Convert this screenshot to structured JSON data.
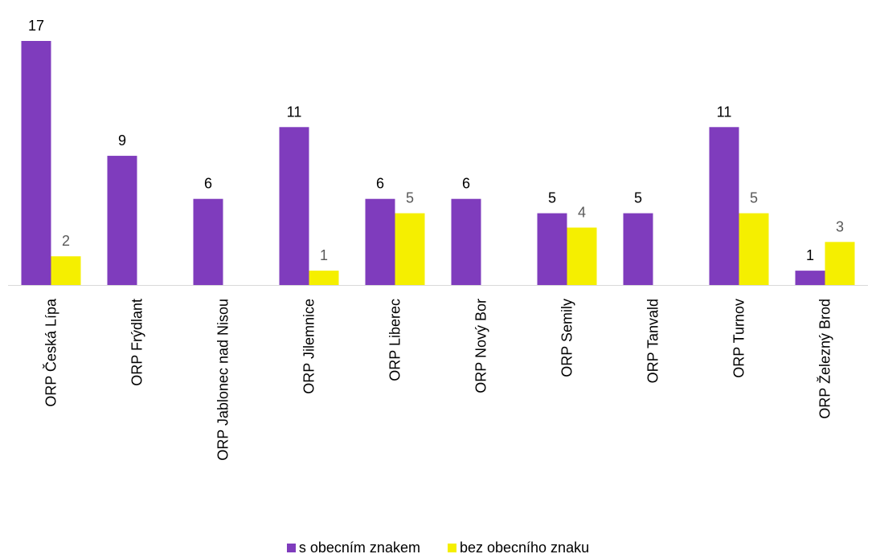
{
  "chart_data": {
    "type": "bar",
    "categories": [
      "ORP Česká Lípa",
      "ORP Frýdlant",
      "ORP Jablonec nad Nisou",
      "ORP Jilemnice",
      "ORP Liberec",
      "ORP Nový Bor",
      "ORP Semily",
      "ORP Tanvald",
      "ORP Turnov",
      "ORP Železný Brod"
    ],
    "series": [
      {
        "name": "s obecním znakem",
        "color": "#7f3cbd",
        "label_color": "#000000",
        "values": [
          17,
          9,
          6,
          11,
          6,
          6,
          5,
          5,
          11,
          1
        ]
      },
      {
        "name": "bez obecního znaku",
        "color": "#f5ef00",
        "label_color": "#595959",
        "values": [
          2,
          null,
          null,
          1,
          5,
          null,
          4,
          null,
          5,
          3
        ]
      }
    ],
    "ylim": [
      0,
      17
    ],
    "grid": false,
    "legend": "bottom"
  }
}
